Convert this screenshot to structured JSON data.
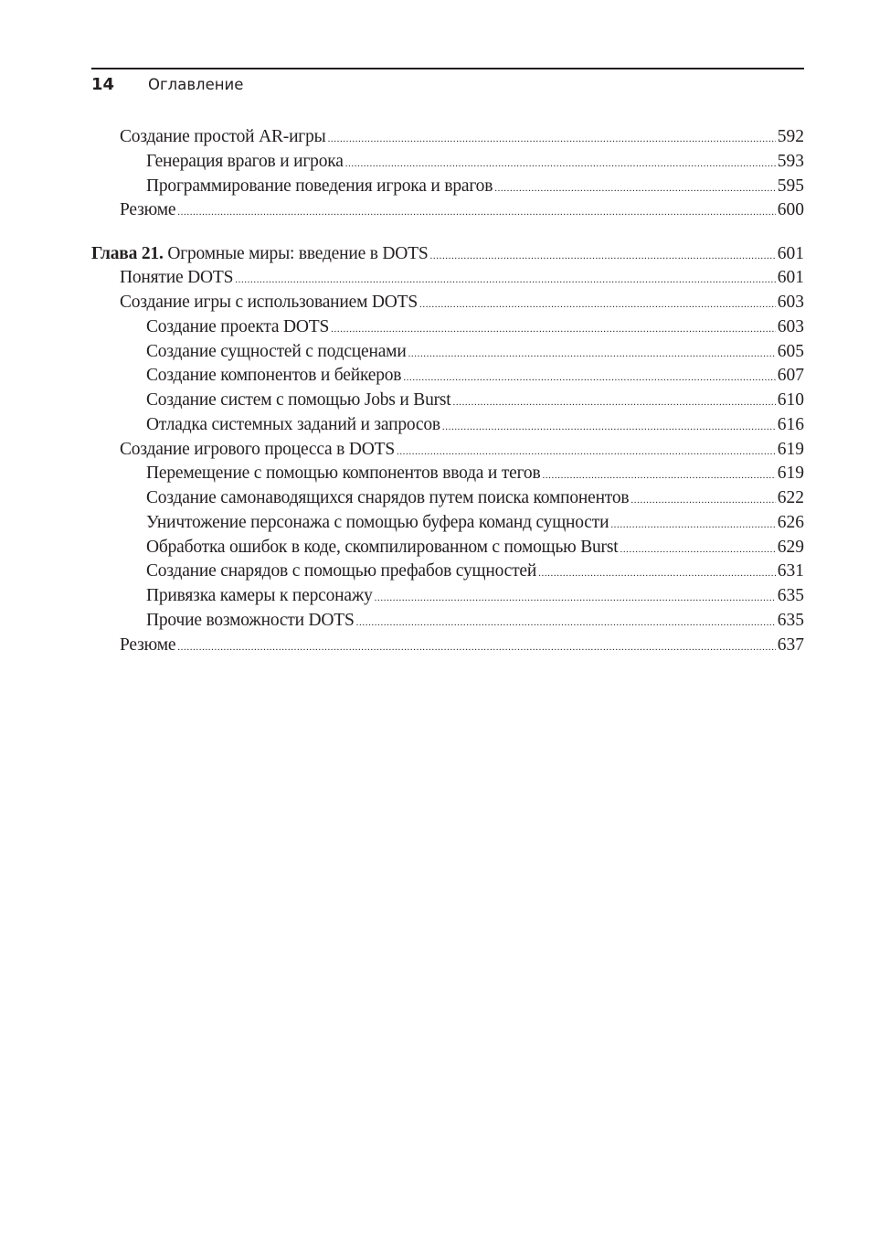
{
  "header": {
    "page_number": "14",
    "section_title": "Оглавление"
  },
  "entries": [
    {
      "level": 1,
      "title": "Создание простой AR-игры",
      "page": "592"
    },
    {
      "level": 2,
      "title": "Генерация врагов и игрока",
      "page": "593"
    },
    {
      "level": 2,
      "title": "Программирование поведения игрока и врагов",
      "page": "595"
    },
    {
      "level": 1,
      "title": "Резюме",
      "page": "600"
    },
    {
      "level": 0,
      "prefix": "Глава 21.",
      "title": "Огромные миры: введение в DOTS",
      "page": "601"
    },
    {
      "level": 1,
      "title": "Понятие DOTS",
      "page": "601"
    },
    {
      "level": 1,
      "title": "Создание игры с использованием DOTS",
      "page": "603"
    },
    {
      "level": 2,
      "title": "Создание проекта DOTS",
      "page": "603"
    },
    {
      "level": 2,
      "title": "Создание сущностей с подсценами",
      "page": "605"
    },
    {
      "level": 2,
      "title": "Создание компонентов и бейкеров",
      "page": "607"
    },
    {
      "level": 2,
      "title": "Создание систем с помощью Jobs и Burst",
      "page": "610"
    },
    {
      "level": 2,
      "title": "Отладка системных заданий и запросов",
      "page": "616"
    },
    {
      "level": 1,
      "title": "Создание игрового процесса в DOTS",
      "page": "619"
    },
    {
      "level": 2,
      "title": "Перемещение с помощью компонентов ввода и тегов",
      "page": "619"
    },
    {
      "level": 2,
      "title": "Создание самонаводящихся снарядов путем поиска компонентов",
      "page": "622"
    },
    {
      "level": 2,
      "title": "Уничтожение персонажа с помощью буфера команд сущности",
      "page": "626"
    },
    {
      "level": 2,
      "title": "Обработка ошибок в коде, скомпилированном с помощью Burst",
      "page": "629"
    },
    {
      "level": 2,
      "title": "Создание снарядов с помощью префабов сущностей",
      "page": "631"
    },
    {
      "level": 2,
      "title": "Привязка камеры к персонажу",
      "page": "635"
    },
    {
      "level": 2,
      "title": "Прочие возможности DOTS",
      "page": "635"
    },
    {
      "level": 1,
      "title": "Резюме",
      "page": "637"
    }
  ]
}
